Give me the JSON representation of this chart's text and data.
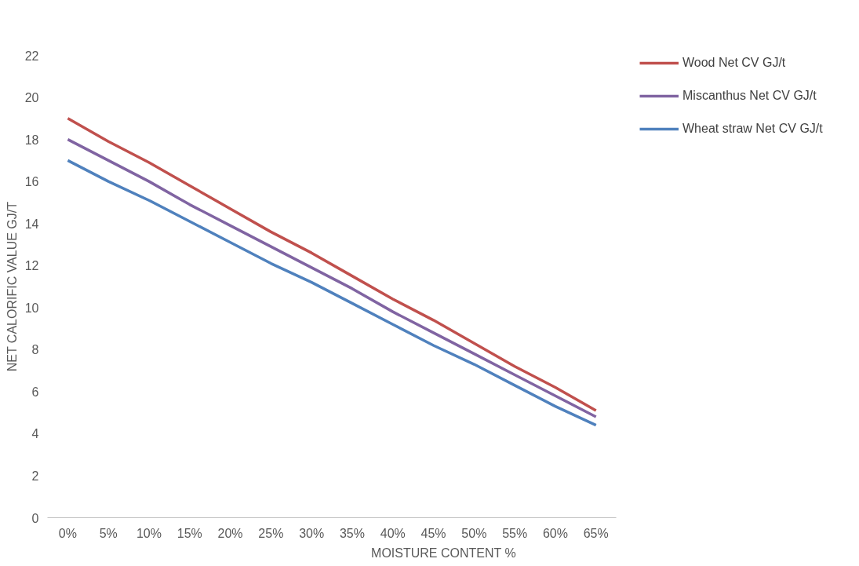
{
  "chart_data": {
    "type": "line",
    "xlabel": "MOISTURE CONTENT %",
    "ylabel": "NET CALORIFIC VALUE GJ/T",
    "categories": [
      "0%",
      "5%",
      "10%",
      "15%",
      "20%",
      "25%",
      "30%",
      "35%",
      "40%",
      "45%",
      "50%",
      "55%",
      "60%",
      "65%"
    ],
    "series": [
      {
        "name": "Wood Net CV GJ/t",
        "color": "#c0504d",
        "values": [
          19.0,
          17.9,
          16.9,
          15.8,
          14.7,
          13.6,
          12.6,
          11.5,
          10.4,
          9.4,
          8.3,
          7.2,
          6.2,
          5.1
        ]
      },
      {
        "name": "Miscanthus Net CV GJ/t",
        "color": "#8064a2",
        "values": [
          18.0,
          17.0,
          16.0,
          14.9,
          13.9,
          12.9,
          11.9,
          10.9,
          9.8,
          8.8,
          7.8,
          6.8,
          5.8,
          4.8
        ]
      },
      {
        "name": "Wheat straw Net CV GJ/t",
        "color": "#4f81bd",
        "values": [
          17.0,
          16.0,
          15.1,
          14.1,
          13.1,
          12.1,
          11.2,
          10.2,
          9.2,
          8.2,
          7.3,
          6.3,
          5.3,
          4.4
        ]
      }
    ],
    "ylim": [
      0,
      22
    ],
    "yticks": [
      0,
      2,
      4,
      6,
      8,
      10,
      12,
      14,
      16,
      18,
      20,
      22
    ],
    "grid": false,
    "legend": "right",
    "marker": "none",
    "line_style": "solid"
  }
}
